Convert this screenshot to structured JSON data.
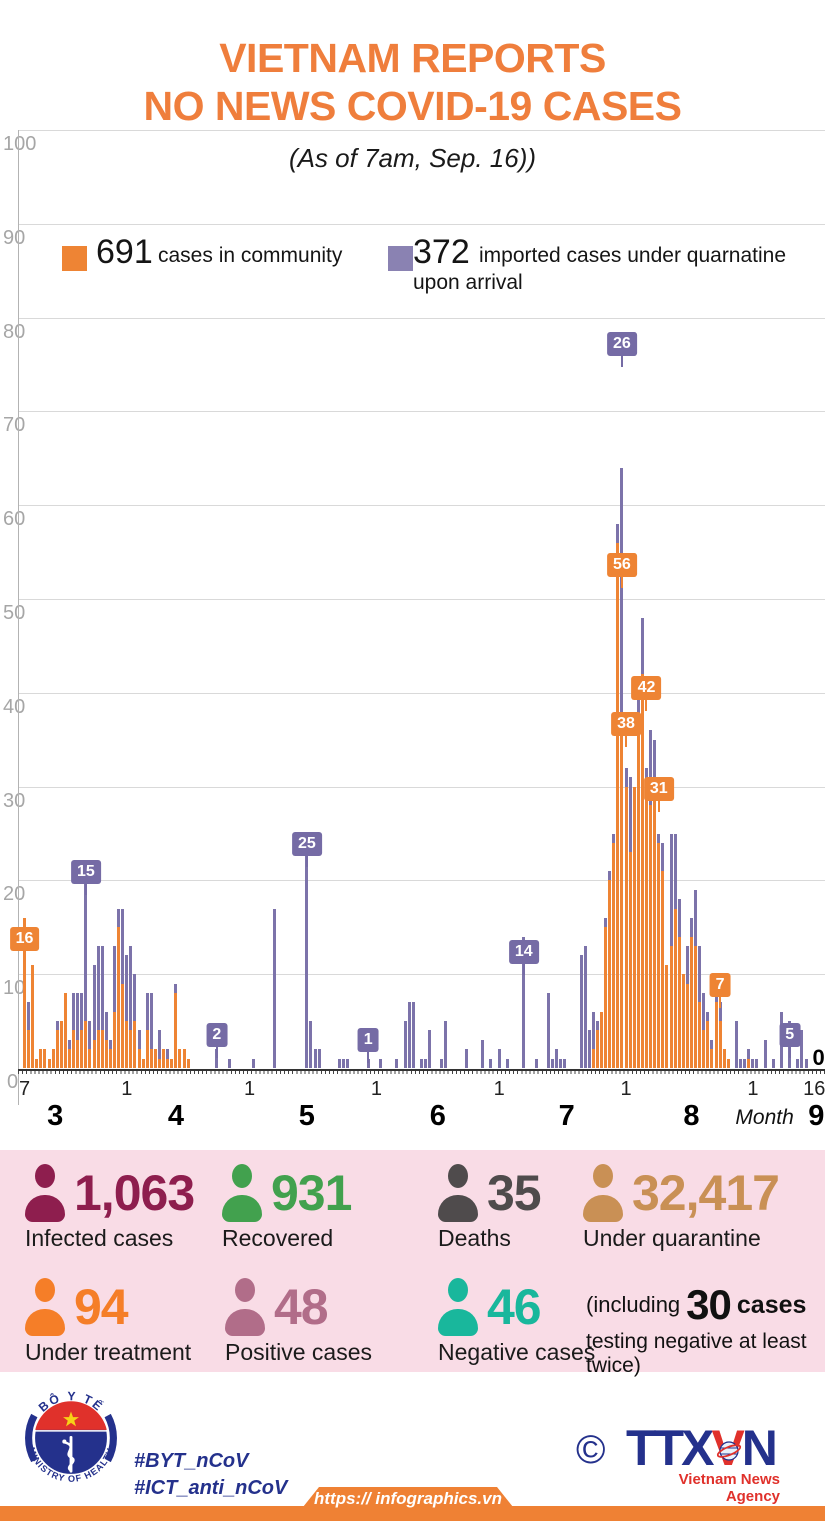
{
  "header": {
    "title_line1": "VIETNAM REPORTS",
    "title_line2": "NO NEWS COVID-19 CASES",
    "subtitle": "(As of 7am, Sep. 16))",
    "title_color": "#ef7e3c"
  },
  "legend": {
    "community": {
      "value": "691",
      "label": "cases in community",
      "color": "#ee8434"
    },
    "imported": {
      "value": "372",
      "label": "imported cases under quarnatine",
      "label2": "upon arrival",
      "color": "#8a82b2"
    }
  },
  "chart_data": {
    "type": "bar",
    "stacked": true,
    "title": "VIETNAM REPORTS NO NEWS COVID-19 CASES",
    "subtitle": "(As of 7am, Sep. 16))",
    "xlabel": "Month",
    "ylabel": "",
    "ylim": [
      0,
      100
    ],
    "y_ticks": [
      0,
      10,
      20,
      30,
      40,
      50,
      60,
      70,
      80,
      90,
      100
    ],
    "grid": true,
    "colors": {
      "community": "#ee8434",
      "imported": "#7c73aa",
      "label_orange": "#ee8434",
      "label_purple": "#756ba5",
      "label_black": "#111111"
    },
    "x_range": "daily, March 7 - September 16",
    "series": [
      {
        "name": "cases in community",
        "values": [
          16,
          4,
          11,
          1,
          2,
          2,
          1,
          2,
          4,
          5,
          8,
          2,
          4,
          3,
          4,
          5,
          2,
          3,
          4,
          4,
          3,
          2,
          6,
          15,
          9,
          5,
          4,
          5,
          2,
          1,
          4,
          2,
          2,
          1,
          2,
          1,
          1,
          8,
          2,
          2,
          1,
          0,
          0,
          0,
          0,
          0,
          0,
          0,
          0,
          0,
          0,
          0,
          0,
          0,
          0,
          0,
          0,
          0,
          0,
          0,
          0,
          0,
          0,
          0,
          0,
          0,
          0,
          0,
          0,
          0,
          0,
          0,
          0,
          0,
          0,
          0,
          0,
          0,
          0,
          0,
          0,
          0,
          0,
          0,
          0,
          0,
          0,
          0,
          0,
          0,
          0,
          0,
          0,
          0,
          0,
          0,
          0,
          0,
          0,
          0,
          0,
          0,
          0,
          0,
          0,
          0,
          0,
          0,
          0,
          0,
          0,
          0,
          0,
          0,
          0,
          0,
          0,
          0,
          0,
          0,
          0,
          0,
          0,
          0,
          0,
          0,
          0,
          0,
          0,
          0,
          0,
          0,
          0,
          0,
          0,
          0,
          0,
          0,
          0,
          2,
          4,
          6,
          15,
          20,
          24,
          56,
          38,
          30,
          23,
          30,
          36,
          42,
          30,
          28,
          31,
          24,
          21,
          11,
          13,
          17,
          14,
          10,
          9,
          14,
          13,
          7,
          4,
          5,
          2,
          7,
          5,
          2,
          1,
          0,
          0,
          0,
          0,
          1,
          0,
          0,
          0,
          0,
          0,
          0,
          0,
          0,
          0,
          0,
          0,
          0,
          0,
          0,
          0
        ]
      },
      {
        "name": "imported cases under quarnatine upon arrival",
        "values": [
          0,
          3,
          0,
          0,
          0,
          0,
          0,
          0,
          1,
          0,
          0,
          1,
          4,
          5,
          4,
          15,
          3,
          8,
          9,
          9,
          3,
          1,
          7,
          2,
          8,
          7,
          9,
          5,
          2,
          0,
          4,
          6,
          0,
          3,
          0,
          1,
          0,
          1,
          0,
          0,
          0,
          0,
          0,
          0,
          0,
          0,
          0,
          2,
          0,
          0,
          1,
          0,
          0,
          0,
          0,
          0,
          1,
          0,
          0,
          0,
          0,
          17,
          0,
          0,
          0,
          0,
          0,
          0,
          0,
          25,
          5,
          2,
          2,
          0,
          0,
          0,
          0,
          1,
          1,
          1,
          0,
          0,
          0,
          0,
          1,
          0,
          0,
          1,
          0,
          0,
          0,
          1,
          0,
          5,
          7,
          7,
          0,
          1,
          1,
          4,
          0,
          0,
          1,
          5,
          0,
          0,
          0,
          0,
          2,
          0,
          0,
          0,
          3,
          0,
          1,
          0,
          2,
          0,
          1,
          0,
          0,
          0,
          14,
          0,
          0,
          1,
          0,
          0,
          8,
          1,
          2,
          1,
          1,
          0,
          0,
          0,
          12,
          13,
          4,
          4,
          1,
          0,
          1,
          1,
          1,
          2,
          26,
          2,
          8,
          0,
          4,
          6,
          2,
          8,
          4,
          1,
          3,
          0,
          12,
          8,
          4,
          0,
          4,
          2,
          6,
          6,
          4,
          1,
          1,
          1,
          2,
          0,
          0,
          0,
          5,
          1,
          1,
          1,
          1,
          1,
          0,
          3,
          0,
          1,
          0,
          6,
          0,
          5,
          0,
          1,
          4,
          1,
          0,
          0
        ]
      }
    ],
    "x_ticks": [
      {
        "day": 0,
        "label": "7"
      },
      {
        "day": 25,
        "label": "1"
      },
      {
        "day": 55,
        "label": "1"
      },
      {
        "day": 86,
        "label": "1"
      },
      {
        "day": 116,
        "label": "1"
      },
      {
        "day": 147,
        "label": "1"
      },
      {
        "day": 178,
        "label": "1"
      },
      {
        "day": 193,
        "label": "16"
      }
    ],
    "month_labels": [
      {
        "day": 7.5,
        "label": "3"
      },
      {
        "day": 37,
        "label": "4"
      },
      {
        "day": 69,
        "label": "5"
      },
      {
        "day": 101,
        "label": "6"
      },
      {
        "day": 132.5,
        "label": "7"
      },
      {
        "day": 163,
        "label": "8"
      },
      {
        "day": 193.5,
        "label": "9"
      }
    ],
    "month_word": "Month",
    "month_word_day": 188,
    "annotations": [
      {
        "text": "16",
        "color": "orange",
        "day": 0,
        "val": 13.8,
        "box": true
      },
      {
        "text": "15",
        "color": "purple",
        "day": 15,
        "val": 20.9,
        "box": true
      },
      {
        "text": "2",
        "color": "purple",
        "day": 47,
        "val": 3.5,
        "box": true
      },
      {
        "text": "25",
        "color": "purple",
        "day": 69,
        "val": 23.9,
        "box": true
      },
      {
        "text": "1",
        "color": "purple",
        "day": 84,
        "val": 3.0,
        "box": true
      },
      {
        "text": "14",
        "color": "purple",
        "day": 122,
        "val": 12.4,
        "box": true
      },
      {
        "text": "26",
        "color": "purple",
        "day": 146,
        "val": 77.2,
        "box": true
      },
      {
        "text": "56",
        "color": "orange",
        "day": 146,
        "val": 53.6,
        "box": true
      },
      {
        "text": "38",
        "color": "orange",
        "day": 147,
        "val": 36.7,
        "box": true
      },
      {
        "text": "42",
        "color": "orange",
        "day": 152,
        "val": 40.5,
        "box": true
      },
      {
        "text": "31",
        "color": "orange",
        "day": 155,
        "val": 29.7,
        "box": true
      },
      {
        "text": "7",
        "color": "orange",
        "day": 170,
        "val": 8.8,
        "box": true
      },
      {
        "text": "5",
        "color": "purple",
        "day": 187,
        "val": 3.5,
        "box": true
      },
      {
        "text": "0",
        "color": "black",
        "day": 193.8,
        "val": 1.2,
        "box": false
      }
    ]
  },
  "stats": {
    "rows": [
      [
        {
          "value": "1,063",
          "label": "Infected cases",
          "color": "#8e1e4e"
        },
        {
          "value": "931",
          "label": "Recovered",
          "color": "#42a14e"
        },
        {
          "value": "35",
          "label": "Deaths",
          "color": "#4f4b4c"
        },
        {
          "value": "32,417",
          "label": "Under quarantine",
          "color": "#c99055"
        }
      ],
      [
        {
          "value": "94",
          "label": "Under treatment",
          "color": "#f57e28"
        },
        {
          "value": "48",
          "label": "Positive cases",
          "color": "#b16d89"
        },
        {
          "value": "46",
          "label": "Negative cases",
          "color": "#19b79c"
        }
      ]
    ],
    "note_prefix": "(including",
    "note_value": "30",
    "note_mid": "cases",
    "note_suffix": "testing negative at least twice)"
  },
  "footer": {
    "hashtags": [
      "#BYT_nCoV",
      "#ICT_anti_nCoV"
    ],
    "moh": {
      "top": "BỘ Y TẾ",
      "bottom": "MINISTRY OF HEALTH"
    },
    "agency": {
      "copyright": "©",
      "part1": "TTX",
      "part2": "V",
      "part3": "N",
      "subtitle": "Vietnam News Agency"
    },
    "url": "https:// infographics.vn"
  }
}
